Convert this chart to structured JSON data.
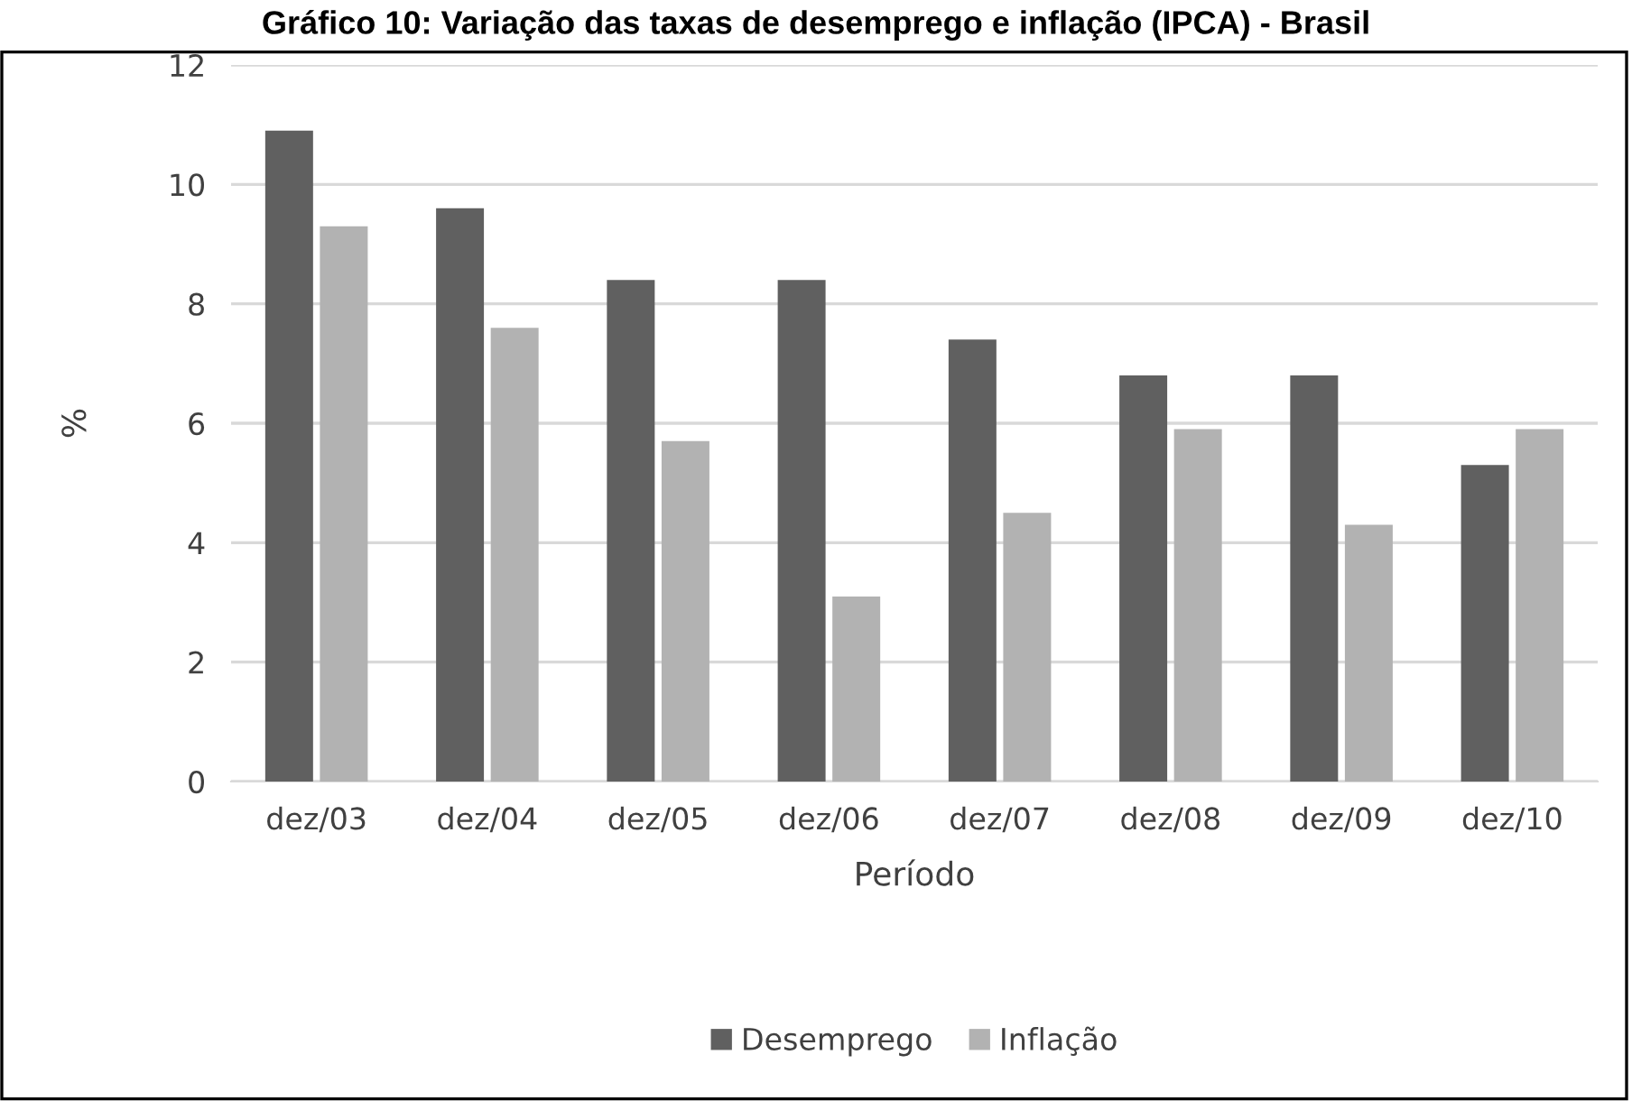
{
  "chart_data": {
    "type": "bar",
    "title": "Gráfico 10: Variação das taxas de desemprego e inflação (IPCA) - Brasil",
    "xlabel": "Período",
    "ylabel": "%",
    "categories": [
      "dez/03",
      "dez/04",
      "dez/05",
      "dez/06",
      "dez/07",
      "dez/08",
      "dez/09",
      "dez/10"
    ],
    "series": [
      {
        "name": "Desemprego",
        "color": "#606060",
        "values": [
          10.9,
          9.6,
          8.4,
          8.4,
          7.4,
          6.8,
          6.8,
          5.3
        ]
      },
      {
        "name": "Inflação",
        "color": "#b2b2b2",
        "values": [
          9.3,
          7.6,
          5.7,
          3.1,
          4.5,
          5.9,
          4.3,
          5.9
        ]
      }
    ],
    "ylim": [
      0,
      12
    ],
    "yticks": [
      0,
      2,
      4,
      6,
      8,
      10,
      12
    ],
    "grid": "y",
    "legend": "bottom"
  }
}
